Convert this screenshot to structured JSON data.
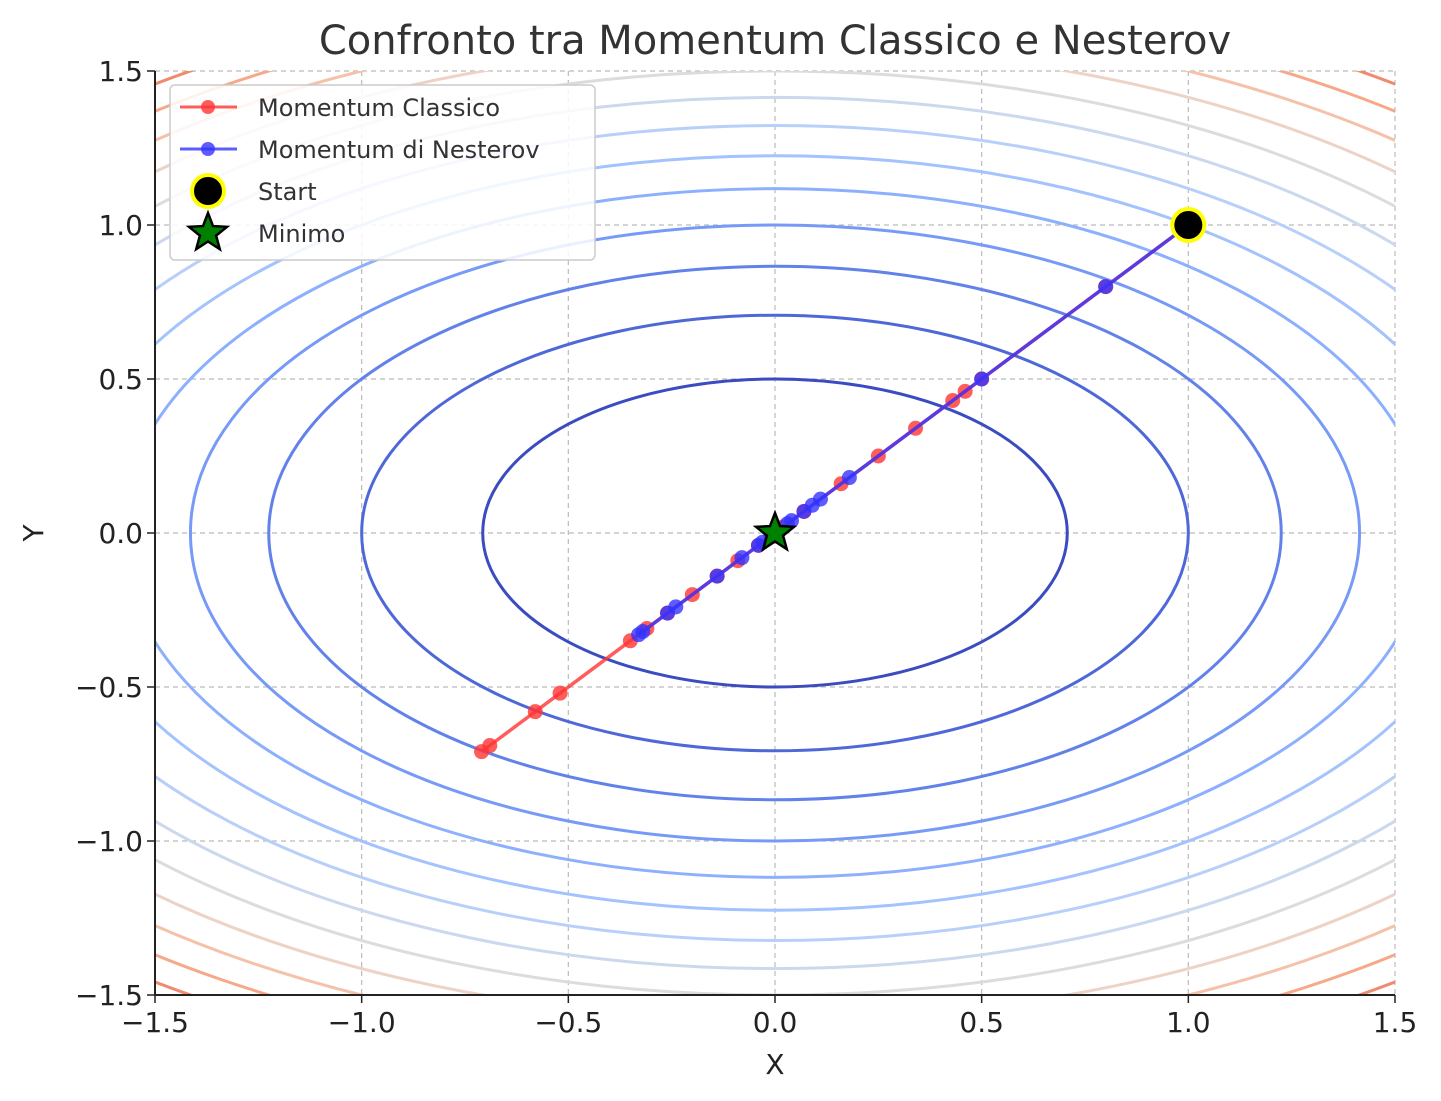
{
  "chart_data": {
    "type": "line",
    "title": "Confronto tra Momentum Classico e Nesterov",
    "xlabel": "X",
    "ylabel": "Y",
    "xlim": [
      -1.5,
      1.5
    ],
    "ylim": [
      -1.5,
      1.5
    ],
    "x_ticks": [
      "−1.5",
      "−1.0",
      "−0.5",
      "0.0",
      "0.5",
      "1.0",
      "1.5"
    ],
    "y_ticks": [
      "−1.5",
      "−1.0",
      "−0.5",
      "0.0",
      "0.5",
      "1.0",
      "1.5"
    ],
    "grid": true,
    "legend_position": "top-left",
    "contour": {
      "function": "f(x, y) = x^2 + 2 y^2",
      "levels": [
        0.5,
        1.0,
        1.5,
        2.0,
        2.5,
        3.0,
        3.5,
        4.0,
        4.5,
        5.0,
        5.5,
        6.0,
        6.5,
        7.0
      ],
      "colormap": "coolwarm",
      "colors": [
        "#3b4cc0",
        "#4e68d8",
        "#6282ea",
        "#779af7",
        "#8db0fe",
        "#a3c2fe",
        "#b8d0f9",
        "#cbd8ee",
        "#dddcdc",
        "#ecd3c5",
        "#f5c1a9",
        "#f7a889",
        "#f08b6e",
        "#de614d"
      ]
    },
    "series": [
      {
        "name": "Momentum Classico",
        "color": "#ff3333",
        "x": [
          1.0,
          0.8,
          0.5,
          0.46,
          0.43,
          0.34,
          0.25,
          0.16,
          0.07,
          0.02,
          -0.04,
          -0.09,
          -0.14,
          -0.2,
          -0.26,
          -0.31,
          -0.35,
          -0.52,
          -0.58,
          -0.69,
          -0.71
        ],
        "y": [
          1.0,
          0.8,
          0.5,
          0.46,
          0.43,
          0.34,
          0.25,
          0.16,
          0.07,
          0.02,
          -0.04,
          -0.09,
          -0.14,
          -0.2,
          -0.26,
          -0.31,
          -0.35,
          -0.52,
          -0.58,
          -0.69,
          -0.71
        ]
      },
      {
        "name": "Momentum di Nesterov",
        "color": "#3333ff",
        "x": [
          1.0,
          0.8,
          0.5,
          0.18,
          0.11,
          0.09,
          0.07,
          0.04,
          0.03,
          -0.01,
          -0.03,
          -0.04,
          -0.08,
          -0.14,
          -0.24,
          -0.26,
          -0.32,
          -0.33
        ],
        "y": [
          1.0,
          0.8,
          0.5,
          0.18,
          0.11,
          0.09,
          0.07,
          0.04,
          0.03,
          -0.01,
          -0.03,
          -0.04,
          -0.08,
          -0.14,
          -0.24,
          -0.26,
          -0.32,
          -0.33
        ]
      }
    ],
    "markers": [
      {
        "name": "Start",
        "x": 1.0,
        "y": 1.0,
        "shape": "circle",
        "fill": "#000000",
        "edge": "#ffff00"
      },
      {
        "name": "Minimo",
        "x": 0.0,
        "y": 0.0,
        "shape": "star",
        "fill": "#008000",
        "edge": "#000000"
      }
    ]
  }
}
